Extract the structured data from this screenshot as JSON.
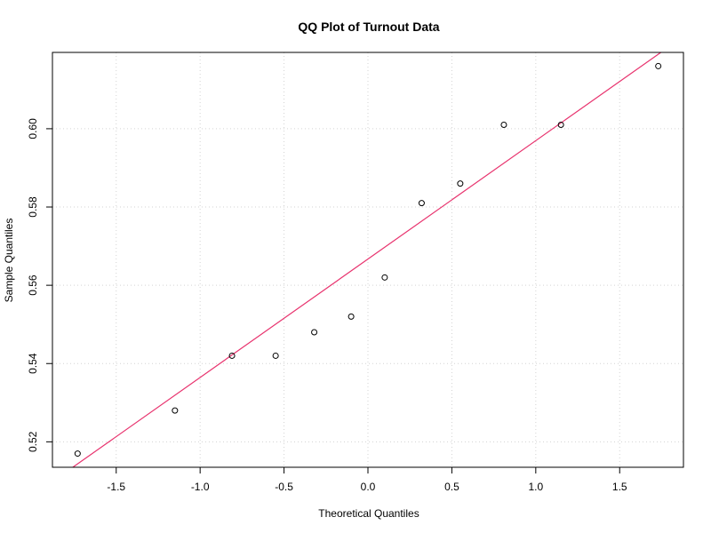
{
  "chart_data": {
    "type": "scatter",
    "title": "QQ Plot of Turnout Data",
    "xlabel": "Theoretical Quantiles",
    "ylabel": "Sample Quantiles",
    "xlim": [
      -1.88,
      1.88
    ],
    "ylim": [
      0.5135,
      0.6195
    ],
    "x_ticks": [
      -1.5,
      -1.0,
      -0.5,
      0.0,
      0.5,
      1.0,
      1.5
    ],
    "x_tick_labels": [
      "-1.5",
      "-1.0",
      "-0.5",
      "0.0",
      "0.5",
      "1.0",
      "1.5"
    ],
    "y_ticks": [
      0.52,
      0.54,
      0.56,
      0.58,
      0.6
    ],
    "y_tick_labels": [
      "0.52",
      "0.54",
      "0.56",
      "0.58",
      "0.60"
    ],
    "grid": true,
    "series": [
      {
        "points": [
          {
            "x": -1.73,
            "y": 0.517
          },
          {
            "x": -1.15,
            "y": 0.528
          },
          {
            "x": -0.81,
            "y": 0.542
          },
          {
            "x": -0.55,
            "y": 0.542
          },
          {
            "x": -0.32,
            "y": 0.548
          },
          {
            "x": -0.1,
            "y": 0.552
          },
          {
            "x": 0.1,
            "y": 0.562
          },
          {
            "x": 0.32,
            "y": 0.581
          },
          {
            "x": 0.55,
            "y": 0.586
          },
          {
            "x": 0.81,
            "y": 0.601
          },
          {
            "x": 1.15,
            "y": 0.601
          },
          {
            "x": 1.73,
            "y": 0.616
          }
        ]
      }
    ],
    "reference_line": {
      "intercept": 0.5667,
      "slope": 0.03025,
      "color": "#e8336e"
    }
  }
}
